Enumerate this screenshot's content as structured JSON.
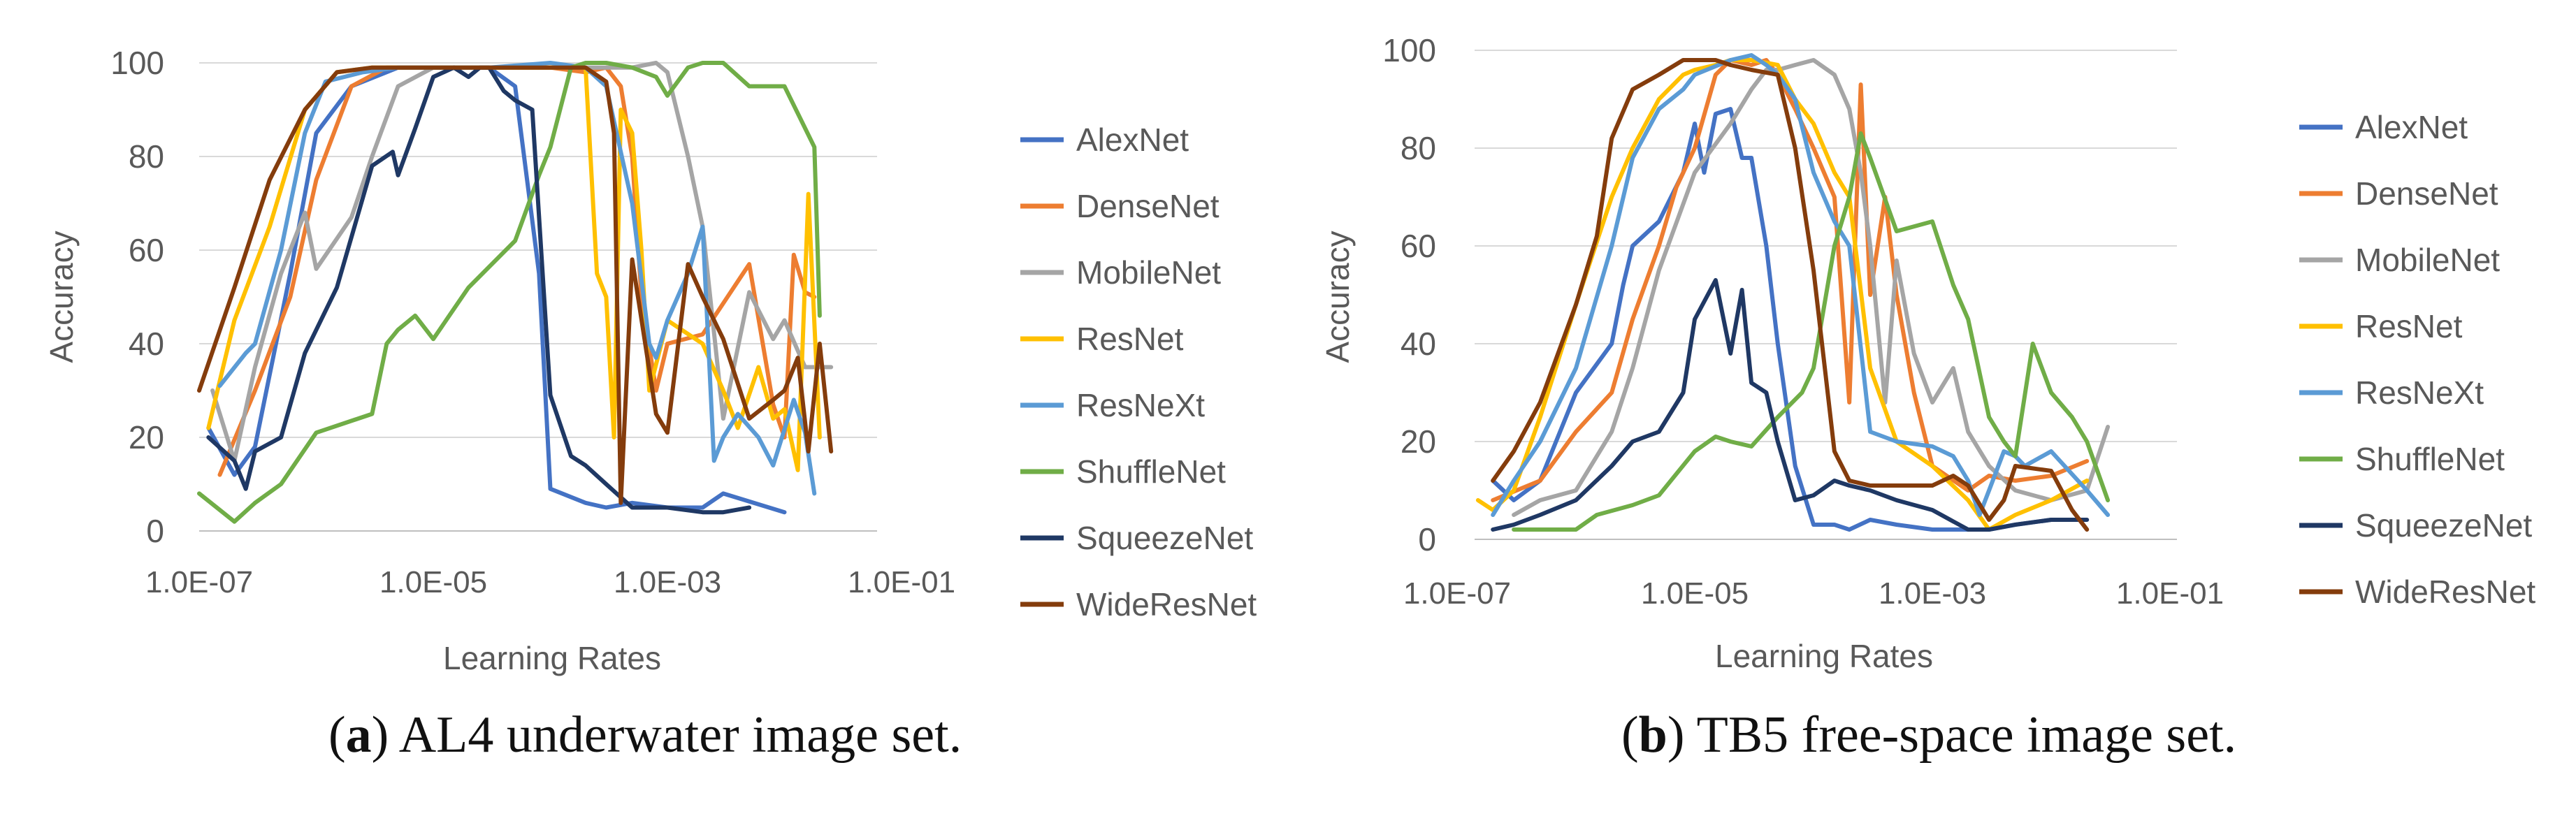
{
  "chart_data": [
    {
      "type": "line",
      "panel": "a",
      "xlabel": "Learning Rates",
      "ylabel": "Accuracy",
      "x_scale": "log",
      "xlim": [
        1e-07,
        0.1
      ],
      "ylim": [
        0,
        100
      ],
      "x_tick_labels": [
        "1.0E-07",
        "1.0E-05",
        "1.0E-03",
        "1.0E-01"
      ],
      "y_tick_labels": [
        "0",
        "20",
        "40",
        "60",
        "80",
        "100"
      ],
      "grid": "horizontal",
      "legend_position": "right",
      "caption_label": "a",
      "caption_text": ") AL4 underwater image set.",
      "series": [
        {
          "name": "AlexNet",
          "color": "#4472C4",
          "x": [
            1.2e-07,
            2e-07,
            3e-07,
            6e-07,
            1e-06,
            2e-06,
            5e-06,
            1e-05,
            2e-05,
            3e-05,
            5e-05,
            8e-05,
            0.0001,
            0.0002,
            0.0003,
            0.0005,
            0.001,
            0.002,
            0.003,
            0.01
          ],
          "y": [
            22,
            12,
            18,
            55,
            85,
            95,
            99,
            99,
            99,
            99,
            95,
            55,
            9,
            6,
            5,
            6,
            5,
            5,
            8,
            4
          ]
        },
        {
          "name": "DenseNet",
          "color": "#ED7D31",
          "x": [
            1.5e-07,
            3e-07,
            6e-07,
            1e-06,
            2e-06,
            4e-06,
            1e-05,
            3e-05,
            0.0001,
            0.0002,
            0.0003,
            0.0004,
            0.0005,
            0.0006,
            0.0008,
            0.001,
            0.002,
            0.005,
            0.008,
            0.01,
            0.012,
            0.015,
            0.018
          ],
          "y": [
            12,
            30,
            50,
            75,
            95,
            99,
            99,
            99,
            99,
            98,
            99,
            95,
            80,
            50,
            30,
            40,
            42,
            57,
            27,
            20,
            59,
            51,
            50
          ]
        },
        {
          "name": "MobileNet",
          "color": "#A5A5A5",
          "x": [
            1.3e-07,
            2e-07,
            3e-07,
            5e-07,
            8e-07,
            1e-06,
            2e-06,
            3e-06,
            5e-06,
            1e-05,
            3e-05,
            0.0001,
            0.0003,
            0.0005,
            0.0008,
            0.001,
            0.0015,
            0.002,
            0.003,
            0.005,
            0.008,
            0.01,
            0.015,
            0.02,
            0.025
          ],
          "y": [
            30,
            15,
            35,
            55,
            68,
            56,
            67,
            80,
            95,
            99,
            99,
            99,
            99,
            99,
            100,
            98,
            80,
            65,
            24,
            51,
            41,
            45,
            35,
            35,
            35
          ]
        },
        {
          "name": "ResNet",
          "color": "#FFC000",
          "x": [
            1.2e-07,
            2e-07,
            4e-07,
            8e-07,
            1.5e-06,
            3e-06,
            6e-06,
            1e-05,
            2e-05,
            5e-05,
            8e-05,
            0.00015,
            0.0002,
            0.00025,
            0.0003,
            0.00035,
            0.0004,
            0.0005,
            0.0006,
            0.0007,
            0.001,
            0.002,
            0.003,
            0.004,
            0.006,
            0.008,
            0.01,
            0.013,
            0.016,
            0.02
          ],
          "y": [
            22,
            45,
            65,
            90,
            98,
            99,
            99,
            99,
            99,
            99,
            99,
            99,
            99,
            55,
            50,
            20,
            90,
            85,
            60,
            30,
            45,
            40,
            30,
            22,
            35,
            24,
            26,
            13,
            72,
            20
          ]
        },
        {
          "name": "ResNeXt",
          "color": "#5B9BD5",
          "x": [
            1.5e-07,
            2.5e-07,
            3e-07,
            5e-07,
            8e-07,
            1.2e-06,
            2.5e-06,
            5e-06,
            1e-05,
            3e-05,
            0.0001,
            0.0002,
            0.0003,
            0.0005,
            0.0007,
            0.0008,
            0.001,
            0.0015,
            0.002,
            0.0025,
            0.003,
            0.004,
            0.006,
            0.008,
            0.012,
            0.015,
            0.018
          ],
          "y": [
            31,
            38,
            40,
            60,
            85,
            96,
            98,
            99,
            99,
            99,
            100,
            99,
            95,
            70,
            40,
            37,
            45,
            55,
            65,
            15,
            20,
            25,
            20,
            14,
            28,
            21,
            8
          ]
        },
        {
          "name": "ShuffleNet",
          "color": "#70AD47",
          "x": [
            1e-07,
            2e-07,
            3e-07,
            5e-07,
            1e-06,
            3e-06,
            4e-06,
            5e-06,
            7e-06,
            1e-05,
            2e-05,
            5e-05,
            8e-05,
            0.0001,
            0.00015,
            0.0002,
            0.0003,
            0.0005,
            0.0008,
            0.001,
            0.0015,
            0.002,
            0.003,
            0.005,
            0.01,
            0.018,
            0.02
          ],
          "y": [
            8,
            2,
            6,
            10,
            21,
            25,
            40,
            43,
            46,
            41,
            52,
            62,
            76,
            82,
            99,
            100,
            100,
            99,
            97,
            93,
            99,
            100,
            100,
            95,
            95,
            82,
            46
          ]
        },
        {
          "name": "SqueezeNet",
          "color": "#1F3864",
          "x": [
            1.2e-07,
            2e-07,
            2.5e-07,
            3e-07,
            5e-07,
            8e-07,
            1.5e-06,
            3e-06,
            4.5e-06,
            5e-06,
            7e-06,
            1e-05,
            1.5e-05,
            2e-05,
            2.5e-05,
            3e-05,
            4e-05,
            5e-05,
            7e-05,
            0.0001,
            0.00015,
            0.0002,
            0.0003,
            0.0005,
            0.001,
            0.002,
            0.003,
            0.005
          ],
          "y": [
            20,
            15,
            9,
            17,
            20,
            38,
            52,
            78,
            81,
            76,
            86,
            97,
            99,
            97,
            99,
            99,
            94,
            92,
            90,
            29,
            16,
            14,
            10,
            5,
            5,
            4,
            4,
            5
          ]
        },
        {
          "name": "WideResNet",
          "color": "#843C0C",
          "x": [
            1e-07,
            2e-07,
            4e-07,
            8e-07,
            1.5e-06,
            3e-06,
            1e-05,
            3e-05,
            0.0001,
            0.0002,
            0.0003,
            0.00035,
            0.0004,
            0.0005,
            0.0008,
            0.001,
            0.0015,
            0.002,
            0.003,
            0.005,
            0.008,
            0.01,
            0.013,
            0.016,
            0.02,
            0.025
          ],
          "y": [
            30,
            52,
            75,
            90,
            98,
            99,
            99,
            99,
            99,
            99,
            96,
            85,
            6,
            58,
            25,
            21,
            57,
            50,
            41,
            24,
            28,
            30,
            37,
            17,
            40,
            17
          ]
        }
      ]
    },
    {
      "type": "line",
      "panel": "b",
      "xlabel": "Learning Rates",
      "ylabel": "Accuracy",
      "x_scale": "log",
      "xlim": [
        1e-07,
        0.1
      ],
      "ylim": [
        0,
        100
      ],
      "x_tick_labels": [
        "1.0E-07",
        "1.0E-05",
        "1.0E-03",
        "1.0E-01"
      ],
      "y_tick_labels": [
        "0",
        "20",
        "40",
        "60",
        "80",
        "100"
      ],
      "grid": "horizontal",
      "legend_position": "right",
      "caption_label": "b",
      "caption_text": ") TB5 free-space image set.",
      "series": [
        {
          "name": "AlexNet",
          "color": "#4472C4",
          "x": [
            2e-07,
            3e-07,
            5e-07,
            1e-06,
            2e-06,
            2.5e-06,
            3e-06,
            5e-06,
            8e-06,
            1e-05,
            1.2e-05,
            1.5e-05,
            2e-05,
            2.5e-05,
            3e-05,
            4e-05,
            5e-05,
            7e-05,
            0.0001,
            0.00015,
            0.0002,
            0.0003,
            0.0005,
            0.001,
            0.002,
            0.003,
            0.005,
            0.01
          ],
          "y": [
            12,
            8,
            12,
            30,
            40,
            52,
            60,
            65,
            75,
            85,
            75,
            87,
            88,
            78,
            78,
            60,
            40,
            15,
            3,
            3,
            2,
            4,
            3,
            2,
            2,
            2,
            3,
            4
          ]
        },
        {
          "name": "DenseNet",
          "color": "#ED7D31",
          "x": [
            2e-07,
            5e-07,
            1e-06,
            2e-06,
            3e-06,
            5e-06,
            7e-06,
            1e-05,
            1.5e-05,
            2e-05,
            3e-05,
            4e-05,
            5e-05,
            7e-05,
            0.0001,
            0.00015,
            0.0002,
            0.00025,
            0.0003,
            0.0004,
            0.0005,
            0.0007,
            0.001,
            0.002,
            0.003,
            0.005,
            0.01,
            0.02
          ],
          "y": [
            8,
            12,
            22,
            30,
            45,
            60,
            72,
            80,
            95,
            98,
            97,
            98,
            95,
            88,
            80,
            70,
            28,
            93,
            50,
            70,
            50,
            30,
            15,
            10,
            13,
            12,
            13,
            16
          ]
        },
        {
          "name": "MobileNet",
          "color": "#A5A5A5",
          "x": [
            3e-07,
            5e-07,
            1e-06,
            2e-06,
            3e-06,
            5e-06,
            1e-05,
            2e-05,
            3e-05,
            4e-05,
            5e-05,
            7e-05,
            0.0001,
            0.00015,
            0.0002,
            0.00025,
            0.0003,
            0.0004,
            0.0005,
            0.0007,
            0.001,
            0.0015,
            0.002,
            0.003,
            0.005,
            0.01,
            0.02,
            0.03
          ],
          "y": [
            5,
            8,
            10,
            22,
            35,
            55,
            75,
            85,
            92,
            96,
            96,
            97,
            98,
            95,
            88,
            75,
            60,
            28,
            57,
            38,
            28,
            35,
            22,
            15,
            10,
            8,
            10,
            23
          ]
        },
        {
          "name": "ResNet",
          "color": "#FFC000",
          "x": [
            1.5e-07,
            2e-07,
            3e-07,
            5e-07,
            1e-06,
            2e-06,
            3e-06,
            5e-06,
            8e-06,
            1e-05,
            1.5e-05,
            2e-05,
            3e-05,
            5e-05,
            7e-05,
            0.0001,
            0.00015,
            0.0002,
            0.0003,
            0.0005,
            0.001,
            0.002,
            0.003,
            0.005,
            0.01,
            0.02
          ],
          "y": [
            8,
            6,
            10,
            25,
            48,
            70,
            80,
            90,
            95,
            96,
            97,
            98,
            98,
            97,
            90,
            85,
            75,
            70,
            35,
            20,
            15,
            8,
            2,
            5,
            8,
            12
          ]
        },
        {
          "name": "ResNeXt",
          "color": "#5B9BD5",
          "x": [
            2e-07,
            3e-07,
            5e-07,
            1e-06,
            2e-06,
            3e-06,
            5e-06,
            8e-06,
            1e-05,
            2e-05,
            3e-05,
            4e-05,
            5e-05,
            7e-05,
            0.0001,
            0.00015,
            0.0002,
            0.0003,
            0.0005,
            0.001,
            0.0015,
            0.002,
            0.0025,
            0.003,
            0.004,
            0.005,
            0.006,
            0.01,
            0.02,
            0.03
          ],
          "y": [
            5,
            12,
            20,
            35,
            60,
            78,
            88,
            92,
            95,
            98,
            99,
            97,
            95,
            90,
            75,
            65,
            60,
            22,
            20,
            19,
            17,
            12,
            5,
            10,
            18,
            17,
            15,
            18,
            10,
            5
          ]
        },
        {
          "name": "ShuffleNet",
          "color": "#70AD47",
          "x": [
            3e-07,
            1e-06,
            1.5e-06,
            3e-06,
            5e-06,
            1e-05,
            1.5e-05,
            2e-05,
            3e-05,
            5e-05,
            8e-05,
            0.0001,
            0.00015,
            0.0002,
            0.00025,
            0.0003,
            0.0005,
            0.001,
            0.0015,
            0.002,
            0.003,
            0.004,
            0.005,
            0.007,
            0.01,
            0.015,
            0.02,
            0.03
          ],
          "y": [
            2,
            2,
            5,
            7,
            9,
            18,
            21,
            20,
            19,
            25,
            30,
            35,
            60,
            70,
            83,
            78,
            63,
            65,
            52,
            45,
            25,
            20,
            17,
            40,
            30,
            25,
            20,
            8
          ]
        },
        {
          "name": "SqueezeNet",
          "color": "#1F3864",
          "x": [
            2e-07,
            3e-07,
            5e-07,
            1e-06,
            2e-06,
            3e-06,
            5e-06,
            8e-06,
            1e-05,
            1.5e-05,
            2e-05,
            2.5e-05,
            3e-05,
            4e-05,
            5e-05,
            7e-05,
            0.0001,
            0.00015,
            0.0002,
            0.0003,
            0.0005,
            0.001,
            0.002,
            0.003,
            0.005,
            0.01,
            0.02
          ],
          "y": [
            2,
            3,
            5,
            8,
            15,
            20,
            22,
            30,
            45,
            53,
            38,
            51,
            32,
            30,
            20,
            8,
            9,
            12,
            11,
            10,
            8,
            6,
            2,
            2,
            3,
            4,
            4
          ]
        },
        {
          "name": "WideResNet",
          "color": "#843C0C",
          "x": [
            2e-07,
            3e-07,
            5e-07,
            1e-06,
            1.5e-06,
            2e-06,
            3e-06,
            5e-06,
            8e-06,
            1e-05,
            1.5e-05,
            2e-05,
            3e-05,
            5e-05,
            7e-05,
            0.0001,
            0.00015,
            0.0002,
            0.0003,
            0.0005,
            0.001,
            0.0015,
            0.002,
            0.003,
            0.004,
            0.005,
            0.01,
            0.015,
            0.02
          ],
          "y": [
            12,
            18,
            28,
            48,
            62,
            82,
            92,
            95,
            98,
            98,
            98,
            97,
            96,
            95,
            80,
            55,
            18,
            12,
            11,
            11,
            11,
            13,
            11,
            4,
            8,
            15,
            14,
            6,
            2
          ]
        }
      ]
    }
  ]
}
